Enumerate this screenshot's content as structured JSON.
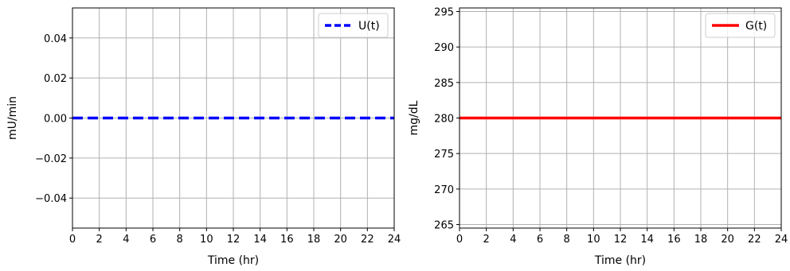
{
  "chart_data": [
    {
      "type": "line",
      "xlabel": "Time (hr)",
      "ylabel": "mU/min",
      "xlim": [
        0,
        24
      ],
      "ylim": [
        -0.055,
        0.055
      ],
      "xticks": [
        0,
        2,
        4,
        6,
        8,
        10,
        12,
        14,
        16,
        18,
        20,
        22,
        24
      ],
      "yticks": [
        -0.04,
        -0.02,
        0.0,
        0.02,
        0.04
      ],
      "ytick_labels": [
        "−0.04",
        "−0.02",
        "0.00",
        "0.02",
        "0.04"
      ],
      "grid": true,
      "legend_position": "top-right",
      "series": [
        {
          "name": "U(t)",
          "color": "#0000ff",
          "style": "dashed",
          "x": [
            0,
            24
          ],
          "y": [
            0,
            0
          ]
        }
      ]
    },
    {
      "type": "line",
      "xlabel": "Time (hr)",
      "ylabel": "mg/dL",
      "xlim": [
        0,
        24
      ],
      "ylim": [
        264.5,
        295.5
      ],
      "xticks": [
        0,
        2,
        4,
        6,
        8,
        10,
        12,
        14,
        16,
        18,
        20,
        22,
        24
      ],
      "yticks": [
        265,
        270,
        275,
        280,
        285,
        290,
        295
      ],
      "ytick_labels": [
        "265",
        "270",
        "275",
        "280",
        "285",
        "290",
        "295"
      ],
      "grid": true,
      "legend_position": "top-right",
      "series": [
        {
          "name": "G(t)",
          "color": "#ff0000",
          "style": "solid",
          "x": [
            0,
            24
          ],
          "y": [
            280,
            280
          ]
        }
      ]
    }
  ]
}
